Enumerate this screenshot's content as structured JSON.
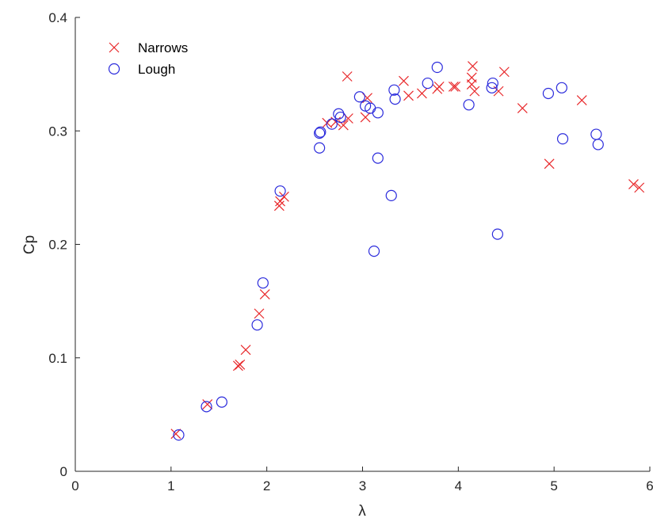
{
  "chart_data": {
    "type": "scatter",
    "title": "",
    "xlabel": "λ",
    "ylabel": "Cp",
    "xlim": [
      0,
      6
    ],
    "ylim": [
      0,
      0.4
    ],
    "xticks": [
      0,
      1,
      2,
      3,
      4,
      5,
      6
    ],
    "yticks": [
      0,
      0.1,
      0.2,
      0.3,
      0.4
    ],
    "xtick_labels": [
      "0",
      "1",
      "2",
      "3",
      "4",
      "5",
      "6"
    ],
    "ytick_labels": [
      "0",
      "0.1",
      "0.2",
      "0.3",
      "0.4"
    ],
    "grid": false,
    "legend": "top-left",
    "series": [
      {
        "name": "Narrows",
        "marker": "x",
        "color": "#e8282b",
        "points": [
          [
            1.05,
            0.033
          ],
          [
            1.38,
            0.059
          ],
          [
            1.7,
            0.093
          ],
          [
            1.72,
            0.094
          ],
          [
            1.78,
            0.107
          ],
          [
            1.92,
            0.139
          ],
          [
            1.98,
            0.156
          ],
          [
            2.13,
            0.234
          ],
          [
            2.14,
            0.238
          ],
          [
            2.18,
            0.242
          ],
          [
            2.63,
            0.307
          ],
          [
            2.72,
            0.308
          ],
          [
            2.8,
            0.305
          ],
          [
            2.85,
            0.311
          ],
          [
            2.84,
            0.348
          ],
          [
            3.03,
            0.312
          ],
          [
            3.05,
            0.329
          ],
          [
            3.43,
            0.344
          ],
          [
            3.48,
            0.331
          ],
          [
            3.62,
            0.333
          ],
          [
            3.8,
            0.339
          ],
          [
            3.78,
            0.337
          ],
          [
            3.97,
            0.339
          ],
          [
            3.95,
            0.339
          ],
          [
            4.14,
            0.347
          ],
          [
            4.15,
            0.357
          ],
          [
            4.17,
            0.335
          ],
          [
            4.14,
            0.341
          ],
          [
            4.42,
            0.335
          ],
          [
            4.48,
            0.352
          ],
          [
            4.67,
            0.32
          ],
          [
            4.95,
            0.271
          ],
          [
            5.29,
            0.327
          ],
          [
            5.83,
            0.253
          ],
          [
            5.89,
            0.25
          ]
        ]
      },
      {
        "name": "Lough",
        "marker": "o",
        "color": "#2b2bdc",
        "points": [
          [
            1.08,
            0.032
          ],
          [
            1.37,
            0.057
          ],
          [
            1.53,
            0.061
          ],
          [
            1.9,
            0.129
          ],
          [
            1.96,
            0.166
          ],
          [
            2.14,
            0.247
          ],
          [
            2.55,
            0.285
          ],
          [
            2.55,
            0.298
          ],
          [
            2.56,
            0.299
          ],
          [
            2.68,
            0.306
          ],
          [
            2.75,
            0.315
          ],
          [
            2.77,
            0.312
          ],
          [
            2.97,
            0.33
          ],
          [
            3.03,
            0.322
          ],
          [
            3.08,
            0.32
          ],
          [
            3.12,
            0.194
          ],
          [
            3.16,
            0.316
          ],
          [
            3.16,
            0.276
          ],
          [
            3.3,
            0.243
          ],
          [
            3.33,
            0.336
          ],
          [
            3.34,
            0.328
          ],
          [
            3.68,
            0.342
          ],
          [
            3.78,
            0.356
          ],
          [
            4.11,
            0.323
          ],
          [
            4.35,
            0.338
          ],
          [
            4.36,
            0.342
          ],
          [
            4.41,
            0.209
          ],
          [
            4.94,
            0.333
          ],
          [
            5.08,
            0.338
          ],
          [
            5.09,
            0.293
          ],
          [
            5.44,
            0.297
          ],
          [
            5.46,
            0.288
          ]
        ]
      }
    ]
  }
}
